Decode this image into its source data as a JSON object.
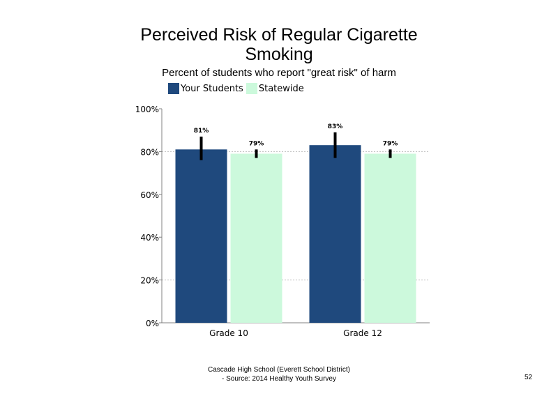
{
  "slide": {
    "title": "Perceived Risk of Regular Cigarette Smoking",
    "subtitle": "Percent of students who report \"great risk\" of harm",
    "footer_line1": "Cascade High School (Everett School District)",
    "footer_line2": "- Source: 2014 Healthy Youth Survey",
    "page_number": "52"
  },
  "chart_data": {
    "type": "bar",
    "title": "Perceived Risk of Regular Cigarette Smoking",
    "subtitle": "Percent of students who report \"great risk\" of harm",
    "categories": [
      "Grade 10",
      "Grade 12"
    ],
    "series": [
      {
        "name": "Your Students",
        "color": "#1f497d",
        "values": [
          81,
          83
        ],
        "labels": [
          "81%",
          "83%"
        ],
        "error_low": [
          76,
          77
        ],
        "error_high": [
          87,
          89
        ]
      },
      {
        "name": "Statewide",
        "color": "#ccf9dc",
        "values": [
          79,
          79
        ],
        "labels": [
          "79%",
          "79%"
        ],
        "error_low": [
          77,
          77
        ],
        "error_high": [
          81,
          81
        ]
      }
    ],
    "ylim": [
      0,
      100
    ],
    "yticks": [
      0,
      20,
      40,
      60,
      80,
      100
    ],
    "ytick_labels": [
      "0%",
      "20%",
      "40%",
      "60%",
      "80%",
      "100%"
    ],
    "xlabel": "",
    "ylabel": "",
    "legend": "top-left",
    "grid": "dashed at 20% and 80%"
  }
}
